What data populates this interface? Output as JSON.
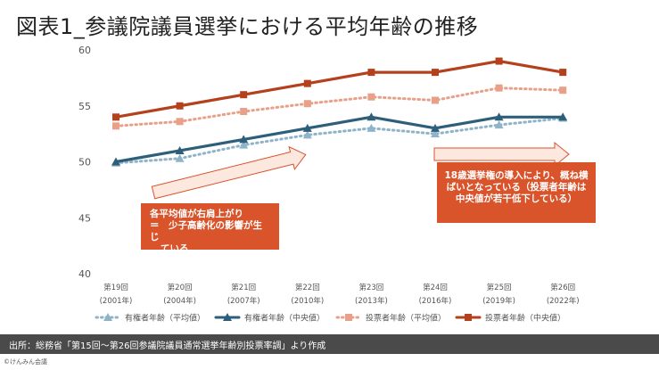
{
  "title": "図表1_参議院議員選挙における平均年齢の推移",
  "callouts": {
    "left_line1": "各平均値が右肩上がり",
    "left_line2": "＝　少子高齢化の影響が生じ",
    "left_line3": "ている",
    "right_line1": "18歳選挙権の導入により、概ね横",
    "right_line2": "ばいとなっている（投票者年齢は",
    "right_line3": "中央値が若干低下している）"
  },
  "footer": {
    "source": "出所：総務省「第15回～第26回参議院議員通常選挙年齢別投票率調」より作成",
    "copyright": "©けんみん会議"
  },
  "colors": {
    "voter_avg": "#8fb4c9",
    "voter_median": "#2e5f7a",
    "turnout_avg": "#e8a088",
    "turnout_median": "#b5401c",
    "arrow_fill": "#fde8e0",
    "arrow_stroke": "#d9532b",
    "callout_bg": "#d9532b",
    "footer_bg": "#4a4a4a"
  },
  "chart_data": {
    "type": "line",
    "x_labels": [
      [
        "第19回",
        "(2001年)"
      ],
      [
        "第20回",
        "(2004年)"
      ],
      [
        "第21回",
        "(2007年)"
      ],
      [
        "第22回",
        "(2010年)"
      ],
      [
        "第23回",
        "(2013年)"
      ],
      [
        "第24回",
        "(2016年)"
      ],
      [
        "第25回",
        "(2019年)"
      ],
      [
        "第26回",
        "(2022年)"
      ]
    ],
    "ylim": [
      40,
      60
    ],
    "yticks": [
      40,
      45,
      50,
      55,
      60
    ],
    "grid": false,
    "legend_position": "bottom",
    "series": [
      {
        "name": "有権者年齢（平均値）",
        "values": [
          49.9,
          50.3,
          51.5,
          52.4,
          53.0,
          52.5,
          53.3,
          53.9
        ],
        "color": "#8fb4c9",
        "style": "dotted",
        "marker": "triangle"
      },
      {
        "name": "有権者年齢（中央値）",
        "values": [
          50.0,
          51.0,
          52.0,
          53.0,
          54.0,
          53.0,
          54.0,
          54.0
        ],
        "color": "#2e5f7a",
        "style": "solid",
        "marker": "triangle"
      },
      {
        "name": "投票者年齢（平均値）",
        "values": [
          53.2,
          53.6,
          54.5,
          55.2,
          55.8,
          55.5,
          56.6,
          56.4
        ],
        "color": "#e8a088",
        "style": "dotted",
        "marker": "square"
      },
      {
        "name": "投票者年齢（中央値）",
        "values": [
          54.0,
          55.0,
          56.0,
          57.0,
          58.0,
          58.0,
          59.0,
          58.0
        ],
        "color": "#b5401c",
        "style": "solid",
        "marker": "square"
      }
    ]
  }
}
